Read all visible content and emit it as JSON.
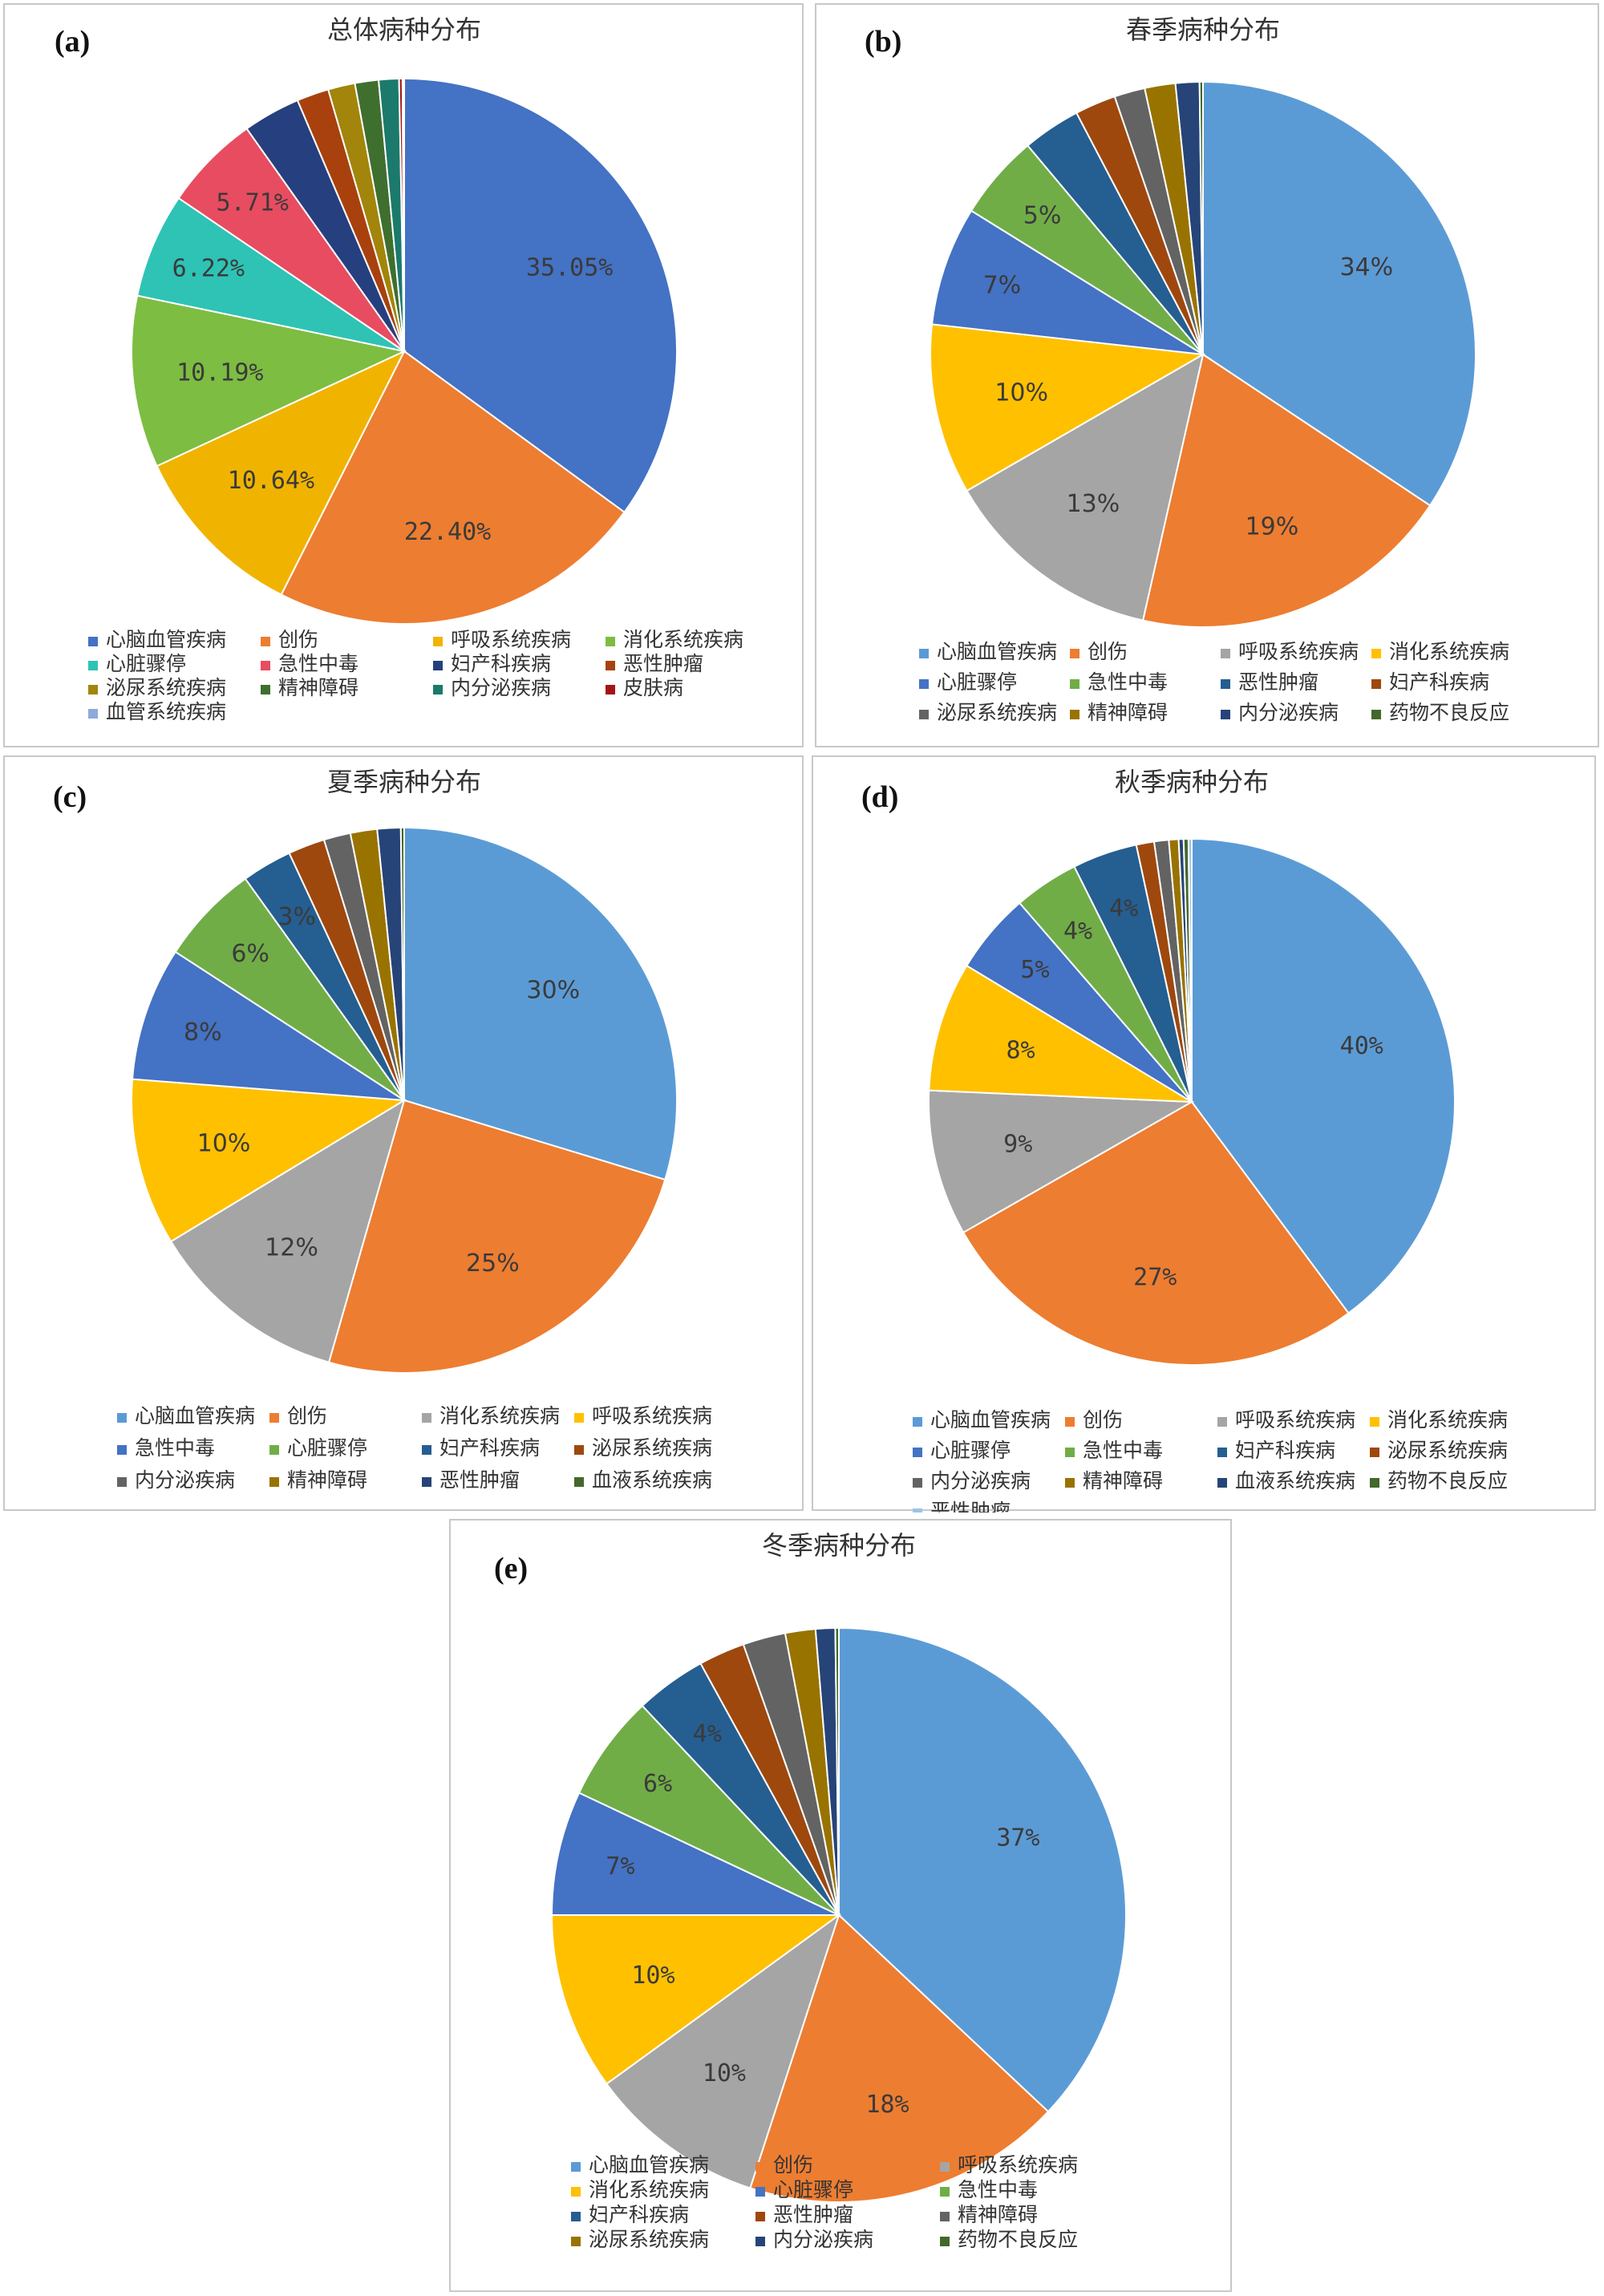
{
  "chart_data": [
    {
      "type": "pie",
      "panel_label": "(a)",
      "title": "总体病种分布",
      "labels_style": "mono",
      "legend_columns": 4,
      "slices": [
        {
          "name": "心脑血管疾病",
          "value": 35.05,
          "label": "35.05%",
          "color": "#4472c4"
        },
        {
          "name": "创伤",
          "value": 22.4,
          "label": "22.40%",
          "color": "#ed7d31"
        },
        {
          "name": "呼吸系统疾病",
          "value": 10.64,
          "label": "10.64%",
          "color": "#f0b400"
        },
        {
          "name": "消化系统疾病",
          "value": 10.19,
          "label": "10.19%",
          "color": "#7dbd42"
        },
        {
          "name": "心脏骤停",
          "value": 6.22,
          "label": "6.22%",
          "color": "#2ec3b5"
        },
        {
          "name": "急性中毒",
          "value": 5.71,
          "label": "5.71%",
          "color": "#e84c60"
        },
        {
          "name": "妇产科疾病",
          "value": 3.4,
          "label": "",
          "color": "#263f7e"
        },
        {
          "name": "恶性肿瘤",
          "value": 1.9,
          "label": "",
          "color": "#a8410e"
        },
        {
          "name": "泌尿系统疾病",
          "value": 1.6,
          "label": "",
          "color": "#a2850a"
        },
        {
          "name": "精神障碍",
          "value": 1.4,
          "label": "",
          "color": "#3f6f2e"
        },
        {
          "name": "内分泌疾病",
          "value": 1.2,
          "label": "",
          "color": "#1b7a6b"
        },
        {
          "name": "皮肤病",
          "value": 0.2,
          "label": "",
          "color": "#a31515"
        },
        {
          "name": "血管系统疾病",
          "value": 0.1,
          "label": "",
          "color": "#8ea9db"
        }
      ]
    },
    {
      "type": "pie",
      "panel_label": "(b)",
      "title": "春季病种分布",
      "labels_style": "sans",
      "legend_columns": 4,
      "slices": [
        {
          "name": "心脑血管疾病",
          "value": 34,
          "label": "34%",
          "color": "#5b9bd5"
        },
        {
          "name": "创伤",
          "value": 19,
          "label": "19%",
          "color": "#ed7d31"
        },
        {
          "name": "呼吸系统疾病",
          "value": 13,
          "label": "13%",
          "color": "#a5a5a5"
        },
        {
          "name": "消化系统疾病",
          "value": 10,
          "label": "10%",
          "color": "#ffc000"
        },
        {
          "name": "心脏骤停",
          "value": 7,
          "label": "7%",
          "color": "#4472c4"
        },
        {
          "name": "急性中毒",
          "value": 5,
          "label": "5%",
          "color": "#70ad47"
        },
        {
          "name": "恶性肿瘤",
          "value": 3.4,
          "label": "",
          "color": "#255e91"
        },
        {
          "name": "妇产科疾病",
          "value": 2.4,
          "label": "",
          "color": "#9e480e"
        },
        {
          "name": "泌尿系统疾病",
          "value": 1.8,
          "label": "",
          "color": "#636363"
        },
        {
          "name": "精神障碍",
          "value": 1.8,
          "label": "",
          "color": "#997300"
        },
        {
          "name": "内分泌疾病",
          "value": 1.4,
          "label": "",
          "color": "#264478"
        },
        {
          "name": "药物不良反应",
          "value": 0.2,
          "label": "",
          "color": "#43682b"
        }
      ]
    },
    {
      "type": "pie",
      "panel_label": "(c)",
      "title": "夏季病种分布",
      "labels_style": "sans",
      "legend_columns": 4,
      "slices": [
        {
          "name": "心脑血管疾病",
          "value": 30,
          "label": "30%",
          "color": "#5b9bd5"
        },
        {
          "name": "创伤",
          "value": 25,
          "label": "25%",
          "color": "#ed7d31"
        },
        {
          "name": "消化系统疾病",
          "value": 12,
          "label": "12%",
          "color": "#a5a5a5"
        },
        {
          "name": "呼吸系统疾病",
          "value": 10,
          "label": "10%",
          "color": "#ffc000"
        },
        {
          "name": "急性中毒",
          "value": 8,
          "label": "8%",
          "color": "#4472c4"
        },
        {
          "name": "心脏骤停",
          "value": 6,
          "label": "6%",
          "color": "#70ad47"
        },
        {
          "name": "妇产科疾病",
          "value": 3,
          "label": "3%",
          "color": "#255e91"
        },
        {
          "name": "泌尿系统疾病",
          "value": 2.2,
          "label": "",
          "color": "#9e480e"
        },
        {
          "name": "内分泌疾病",
          "value": 1.6,
          "label": "",
          "color": "#636363"
        },
        {
          "name": "精神障碍",
          "value": 1.6,
          "label": "",
          "color": "#997300"
        },
        {
          "name": "恶性肿瘤",
          "value": 1.4,
          "label": "",
          "color": "#264478"
        },
        {
          "name": "血液系统疾病",
          "value": 0.2,
          "label": "",
          "color": "#43682b"
        }
      ]
    },
    {
      "type": "pie",
      "panel_label": "(d)",
      "title": "秋季病种分布",
      "labels_style": "mono",
      "legend_columns": 4,
      "slices": [
        {
          "name": "心脑血管疾病",
          "value": 40,
          "label": "40%",
          "color": "#5b9bd5"
        },
        {
          "name": "创伤",
          "value": 27,
          "label": "27%",
          "color": "#ed7d31"
        },
        {
          "name": "呼吸系统疾病",
          "value": 9,
          "label": "9%",
          "color": "#a5a5a5"
        },
        {
          "name": "消化系统疾病",
          "value": 8,
          "label": "8%",
          "color": "#ffc000"
        },
        {
          "name": "心脏骤停",
          "value": 5,
          "label": "5%",
          "color": "#4472c4"
        },
        {
          "name": "急性中毒",
          "value": 4,
          "label": "4%",
          "color": "#70ad47"
        },
        {
          "name": "妇产科疾病",
          "value": 4,
          "label": "4%",
          "color": "#255e91"
        },
        {
          "name": "泌尿系统疾病",
          "value": 1.1,
          "label": "",
          "color": "#9e480e"
        },
        {
          "name": "内分泌疾病",
          "value": 0.9,
          "label": "",
          "color": "#636363"
        },
        {
          "name": "精神障碍",
          "value": 0.6,
          "label": "",
          "color": "#997300"
        },
        {
          "name": "血液系统疾病",
          "value": 0.3,
          "label": "",
          "color": "#264478"
        },
        {
          "name": "药物不良反应",
          "value": 0.3,
          "label": "",
          "color": "#43682b"
        },
        {
          "name": "恶性肿瘤",
          "value": 0.2,
          "label": "",
          "color": "#9dc3e6"
        }
      ]
    },
    {
      "type": "pie",
      "panel_label": "(e)",
      "title": "冬季病种分布",
      "labels_style": "mono",
      "legend_columns": 3,
      "slices": [
        {
          "name": "心脑血管疾病",
          "value": 37,
          "label": "37%",
          "color": "#5b9bd5"
        },
        {
          "name": "创伤",
          "value": 18,
          "label": "18%",
          "color": "#ed7d31"
        },
        {
          "name": "呼吸系统疾病",
          "value": 10,
          "label": "10%",
          "color": "#a5a5a5"
        },
        {
          "name": "消化系统疾病",
          "value": 10,
          "label": "10%",
          "color": "#ffc000"
        },
        {
          "name": "心脏骤停",
          "value": 7,
          "label": "7%",
          "color": "#4472c4"
        },
        {
          "name": "急性中毒",
          "value": 6,
          "label": "6%",
          "color": "#70ad47"
        },
        {
          "name": "妇产科疾病",
          "value": 4,
          "label": "4%",
          "color": "#255e91"
        },
        {
          "name": "恶性肿瘤",
          "value": 2.6,
          "label": "",
          "color": "#9e480e"
        },
        {
          "name": "精神障碍",
          "value": 2.4,
          "label": "",
          "color": "#636363"
        },
        {
          "name": "泌尿系统疾病",
          "value": 1.7,
          "label": "",
          "color": "#997300"
        },
        {
          "name": "内分泌疾病",
          "value": 1.1,
          "label": "",
          "color": "#264478"
        },
        {
          "name": "药物不良反应",
          "value": 0.2,
          "label": "",
          "color": "#43682b"
        }
      ]
    }
  ]
}
